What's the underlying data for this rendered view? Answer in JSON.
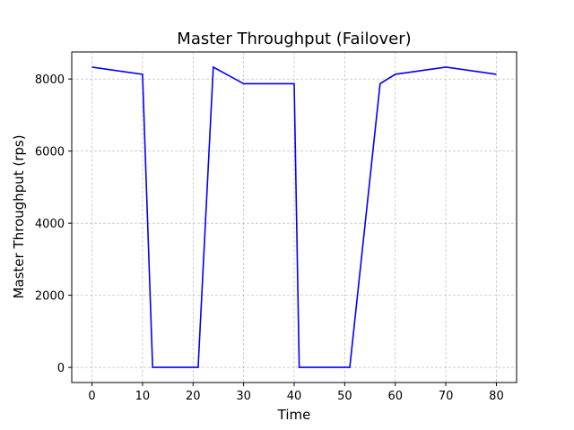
{
  "chart_data": {
    "type": "line",
    "title": "Master Throughput (Failover)",
    "xlabel": "Time",
    "ylabel": "Master Throughput (rps)",
    "xlim": [
      -4,
      84
    ],
    "ylim": [
      -420,
      8750
    ],
    "x_ticks": [
      0,
      10,
      20,
      30,
      40,
      50,
      60,
      70,
      80
    ],
    "y_ticks": [
      0,
      2000,
      4000,
      6000,
      8000
    ],
    "grid": true,
    "grid_style": "dashed",
    "line_color": "#0000ff",
    "series": [
      {
        "x": [
          0,
          10,
          12,
          21,
          24,
          30,
          40,
          41,
          51,
          57,
          60,
          70,
          80
        ],
        "values": [
          8330,
          8130,
          0,
          0,
          8330,
          7870,
          7870,
          0,
          0,
          7870,
          8130,
          8330,
          8130
        ]
      }
    ]
  }
}
